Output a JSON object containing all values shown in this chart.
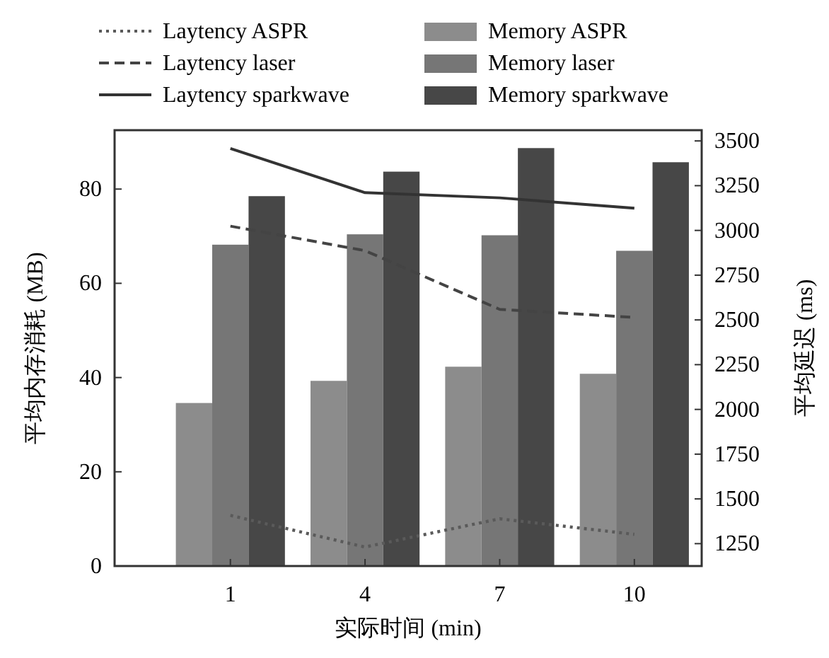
{
  "chart_data": {
    "type": "bar",
    "xlabel": "实际时间 (min)",
    "ylabel": "平均内存消耗 (MB)",
    "y2label": "平均延迟 (ms)",
    "categories": [
      "1",
      "4",
      "7",
      "10"
    ],
    "ylim": [
      0,
      92.5
    ],
    "yticks": [
      0,
      20,
      40,
      60,
      80
    ],
    "y2lim": [
      1125,
      3560
    ],
    "y2ticks": [
      1250,
      1500,
      1750,
      2000,
      2250,
      2500,
      2750,
      3000,
      3250,
      3500
    ],
    "legend": "top",
    "series": [
      {
        "name": "Laytency ASPR",
        "type": "line",
        "axis": "y2",
        "line_style": "dotted",
        "color": "#5a5a5a",
        "values": [
          1408,
          1231,
          1389,
          1302
        ]
      },
      {
        "name": "Laytency laser",
        "type": "line",
        "axis": "y2",
        "line_style": "dashed",
        "color": "#444444",
        "values": [
          3024,
          2887,
          2559,
          2514
        ]
      },
      {
        "name": "Laytency sparkwave",
        "type": "line",
        "axis": "y2",
        "line_style": "solid",
        "color": "#333333",
        "values": [
          3458,
          3211,
          3182,
          3124
        ]
      },
      {
        "name": "Memory ASPR",
        "color": "#8c8c8c",
        "values": [
          34.6,
          39.3,
          42.3,
          40.8
        ]
      },
      {
        "name": "Memory laser",
        "color": "#767676",
        "values": [
          68.2,
          70.4,
          70.2,
          66.9
        ]
      },
      {
        "name": "Memory sparkwave",
        "color": "#474747",
        "values": [
          78.5,
          83.7,
          88.7,
          85.7
        ]
      }
    ]
  }
}
